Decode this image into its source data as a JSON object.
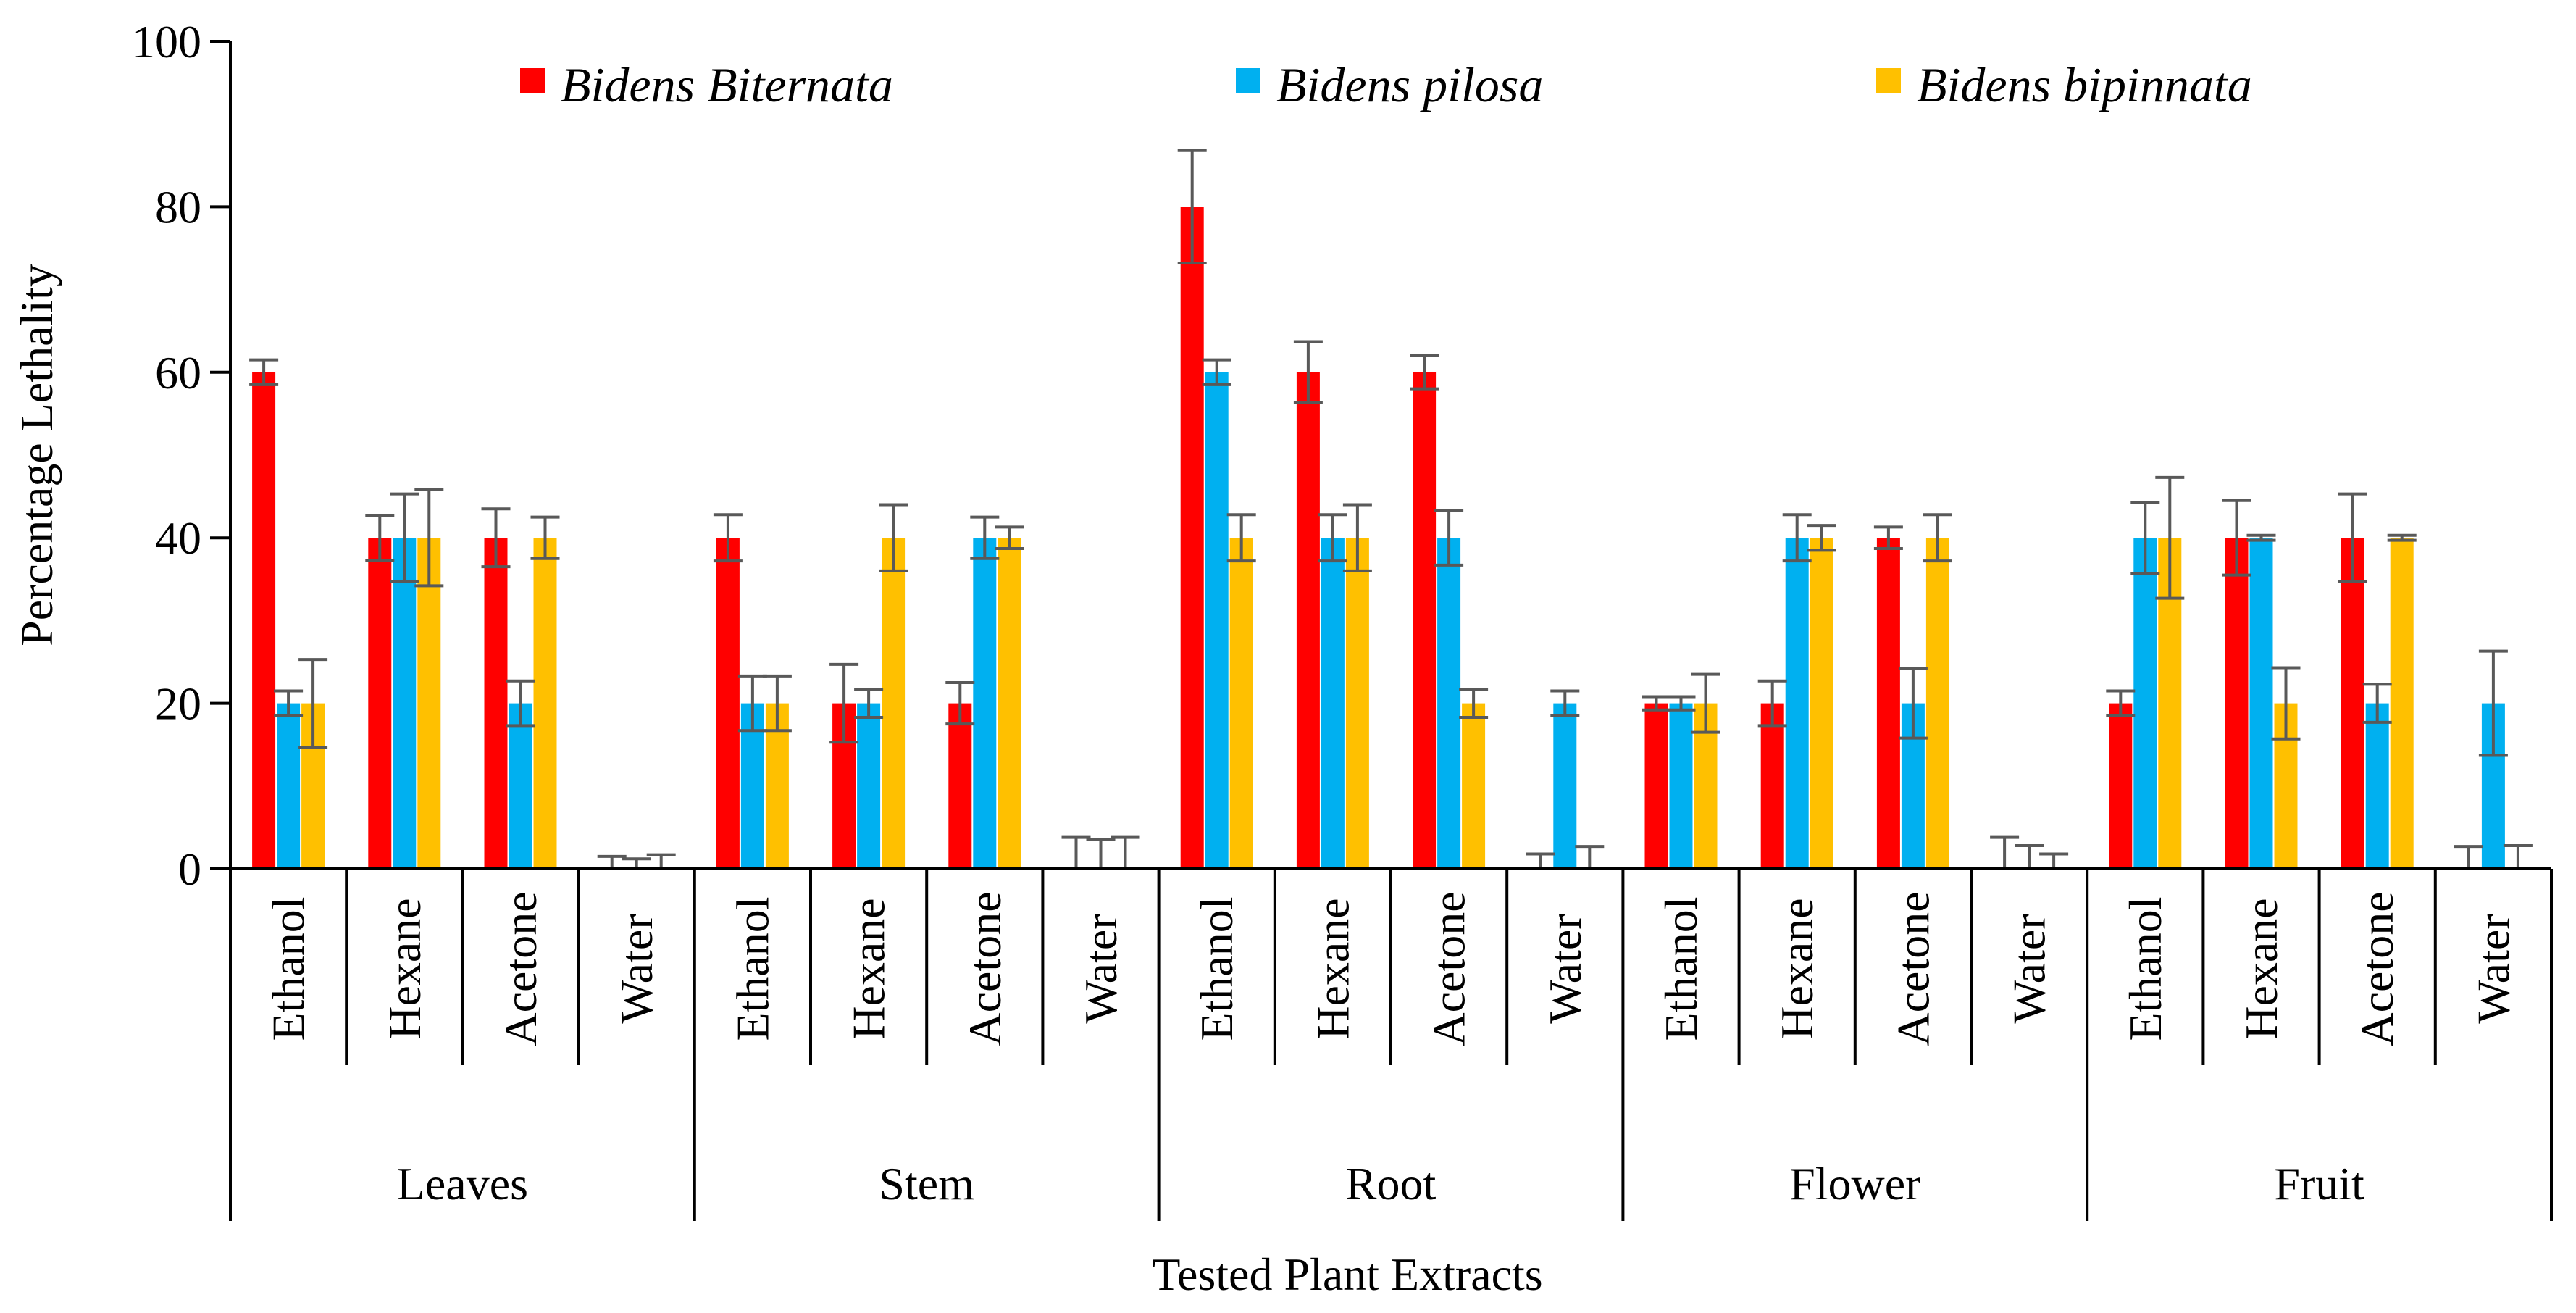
{
  "chart_data": {
    "type": "bar",
    "title": "",
    "ylabel": "Percentage Lethality",
    "xlabel": "Tested Plant Extracts",
    "ylim": [
      0,
      100
    ],
    "yticks": [
      "0",
      "20",
      "40",
      "60",
      "80",
      "100"
    ],
    "legend_position": "top",
    "grid": false,
    "groups": [
      {
        "name": "Leaves",
        "categories": [
          "Ethanol",
          "Hexane",
          "Acetone",
          "Water"
        ]
      },
      {
        "name": "Stem",
        "categories": [
          "Ethanol",
          "Hexane",
          "Acetone",
          "Water"
        ]
      },
      {
        "name": "Root",
        "categories": [
          "Ethanol",
          "Hexane",
          "Acetone",
          "Water"
        ]
      },
      {
        "name": "Flower",
        "categories": [
          "Ethanol",
          "Hexane",
          "Acetone",
          "Water"
        ]
      },
      {
        "name": "Fruit",
        "categories": [
          "Ethanol",
          "Hexane",
          "Acetone",
          "Water"
        ]
      }
    ],
    "series": [
      {
        "name": "Bidens Biternata",
        "color": "#FF0000",
        "values": [
          60,
          40,
          40,
          0,
          40,
          20,
          20,
          0,
          80,
          60,
          60,
          0,
          20,
          20,
          40,
          0,
          20,
          40,
          40,
          0
        ],
        "errors": [
          1.5,
          2.7,
          3.5,
          1.5,
          2.8,
          4.7,
          2.5,
          3.8,
          6.8,
          3.7,
          2.0,
          1.8,
          0.8,
          2.7,
          1.3,
          3.8,
          1.5,
          4.5,
          5.3,
          2.7
        ]
      },
      {
        "name": "Bidens pilosa",
        "color": "#00B0F0",
        "values": [
          20,
          40,
          20,
          0,
          20,
          20,
          40,
          0,
          60,
          40,
          40,
          20,
          20,
          40,
          20,
          0,
          40,
          40,
          20,
          20
        ],
        "errors": [
          1.5,
          5.3,
          2.7,
          1.2,
          3.3,
          1.7,
          2.5,
          3.5,
          1.5,
          2.8,
          3.3,
          1.5,
          0.8,
          2.8,
          4.2,
          2.8,
          4.3,
          0.3,
          2.3,
          6.3
        ]
      },
      {
        "name": "Bidens bipinnata",
        "color": "#FFC000",
        "values": [
          20,
          40,
          40,
          0,
          20,
          40,
          40,
          0,
          40,
          40,
          20,
          0,
          20,
          40,
          40,
          0,
          40,
          20,
          40,
          0
        ],
        "errors": [
          5.3,
          5.8,
          2.5,
          1.7,
          3.3,
          4.0,
          1.3,
          3.8,
          2.8,
          4.0,
          1.7,
          2.7,
          3.5,
          1.5,
          2.8,
          1.8,
          7.3,
          4.3,
          0.3,
          2.8
        ]
      }
    ]
  }
}
